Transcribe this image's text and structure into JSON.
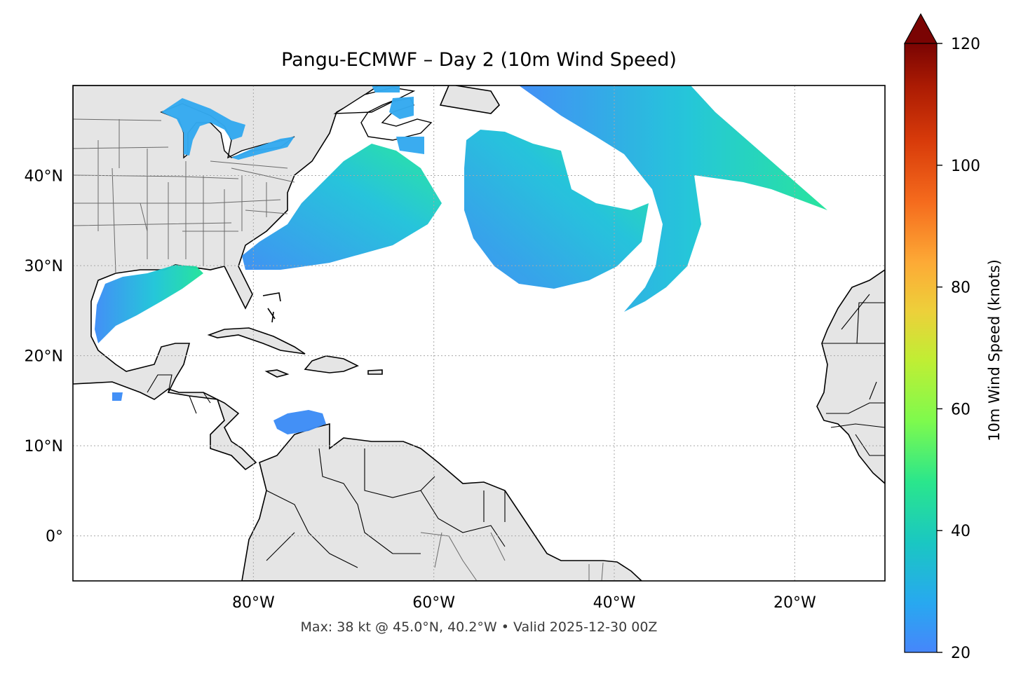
{
  "title": "Pangu-ECMWF – Day 2 (10m Wind Speed)",
  "footer": "Max: 38 kt @ 45.0°N, 40.2°W • Valid 2025-12-30 00Z",
  "map": {
    "lon_range": [
      -100,
      -10
    ],
    "lat_range": [
      -5,
      50
    ],
    "lat_ticks": [
      {
        "value": 40,
        "label": "40°N"
      },
      {
        "value": 30,
        "label": "30°N"
      },
      {
        "value": 20,
        "label": "20°N"
      },
      {
        "value": 10,
        "label": "10°N"
      },
      {
        "value": 0,
        "label": "0°"
      }
    ],
    "lon_ticks": [
      {
        "value": -80,
        "label": "80°W"
      },
      {
        "value": -60,
        "label": "60°W"
      },
      {
        "value": -40,
        "label": "40°W"
      },
      {
        "value": -20,
        "label": "20°W"
      }
    ],
    "land_color": "#e5e5e5",
    "gridline_style": "dotted"
  },
  "colorbar": {
    "label": "10m Wind Speed (knots)",
    "min": 20,
    "max": 120,
    "ticks": [
      {
        "value": 20,
        "label": "20"
      },
      {
        "value": 40,
        "label": "40"
      },
      {
        "value": 60,
        "label": "60"
      },
      {
        "value": 80,
        "label": "80"
      },
      {
        "value": 100,
        "label": "100"
      },
      {
        "value": 120,
        "label": "120"
      }
    ],
    "colormap": "turbo",
    "extend": "max"
  }
}
